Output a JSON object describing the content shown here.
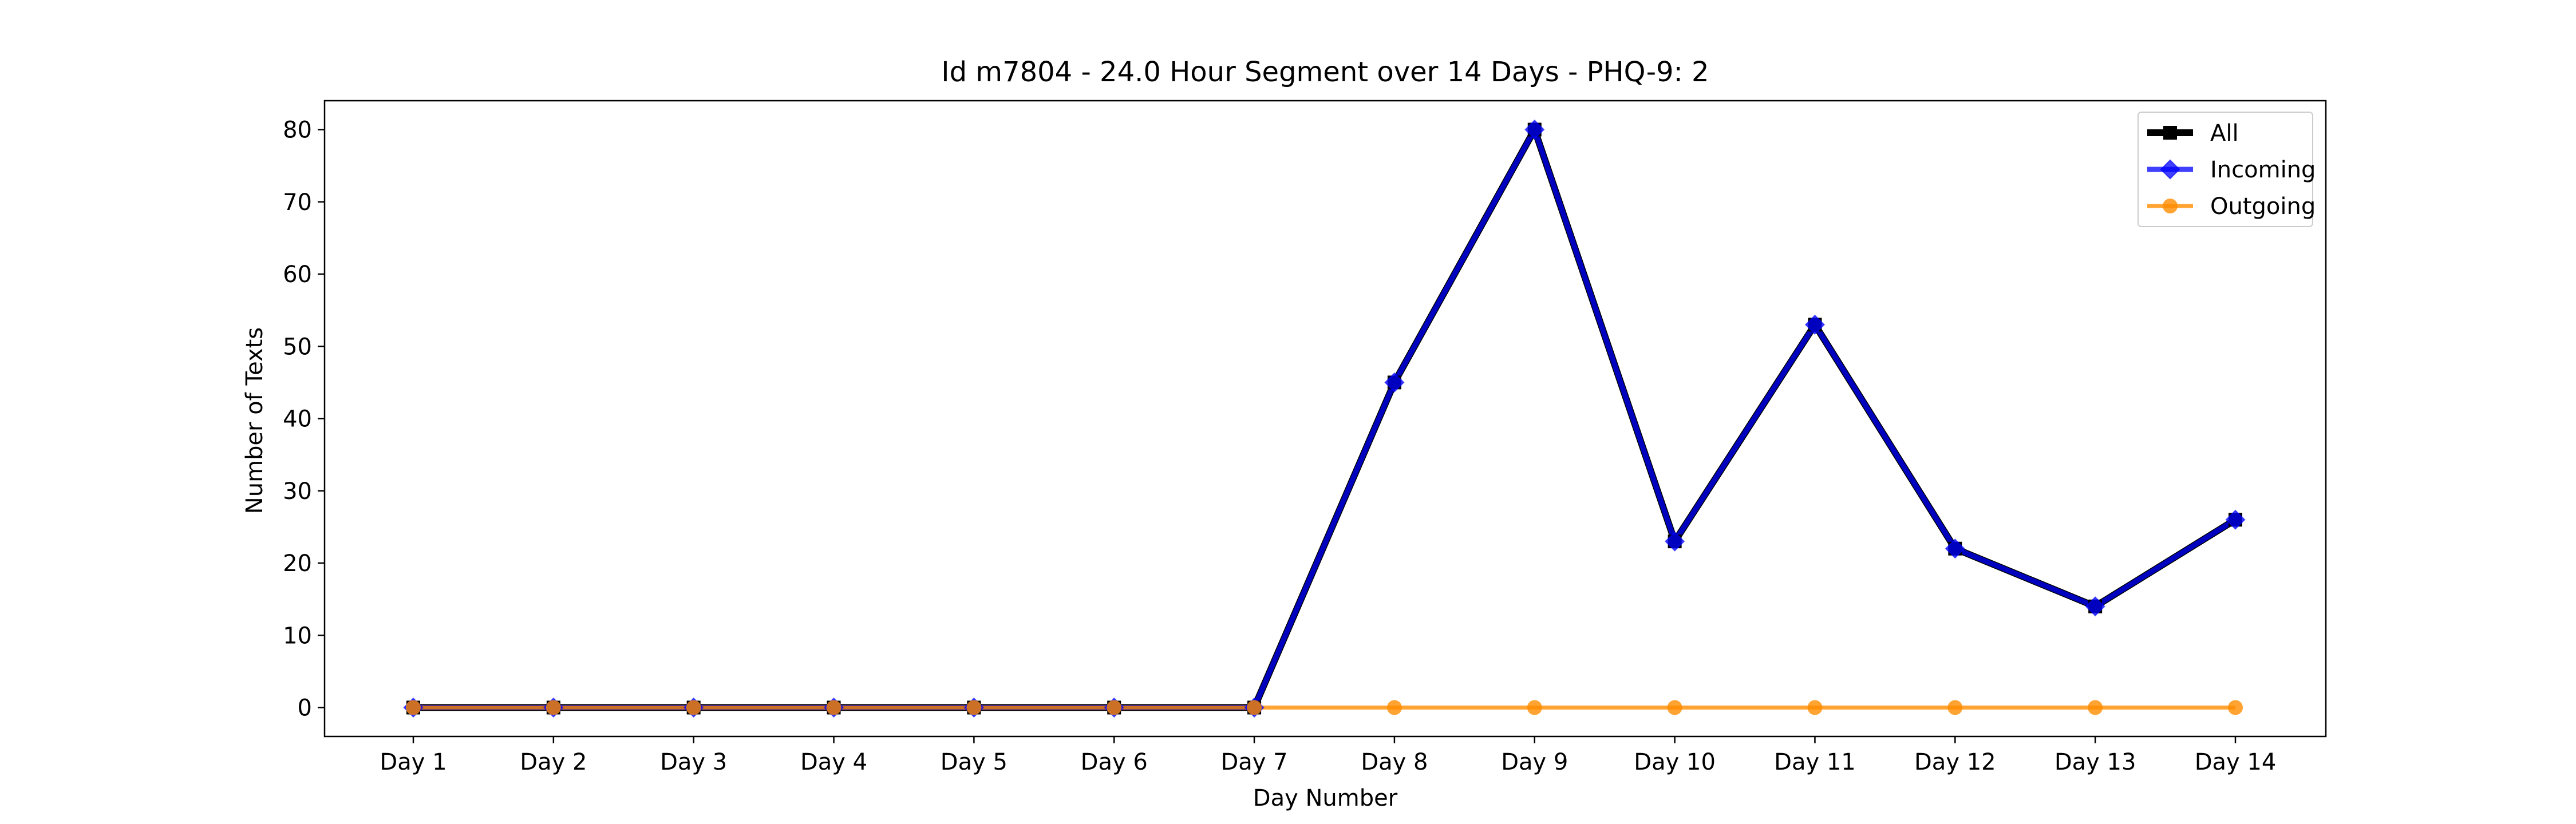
{
  "chart_data": {
    "type": "line",
    "title": "Id m7804 - 24.0 Hour Segment over 14 Days - PHQ-9: 2",
    "xlabel": "Day Number",
    "ylabel": "Number of Texts",
    "categories": [
      "Day 1",
      "Day 2",
      "Day 3",
      "Day 4",
      "Day 5",
      "Day 6",
      "Day 7",
      "Day 8",
      "Day 9",
      "Day 10",
      "Day 11",
      "Day 12",
      "Day 13",
      "Day 14"
    ],
    "ylim": [
      -4,
      84
    ],
    "yticks": [
      0,
      10,
      20,
      30,
      40,
      50,
      60,
      70,
      80
    ],
    "grid": false,
    "legend_position": "top-right",
    "series": [
      {
        "name": "All",
        "color": "#000000",
        "marker": "square",
        "values": [
          0,
          0,
          0,
          0,
          0,
          0,
          0,
          45,
          80,
          23,
          53,
          22,
          14,
          26
        ]
      },
      {
        "name": "Incoming",
        "color": "#0000ff",
        "marker": "diamond",
        "values": [
          0,
          0,
          0,
          0,
          0,
          0,
          0,
          45,
          80,
          23,
          53,
          22,
          14,
          26
        ]
      },
      {
        "name": "Outgoing",
        "color": "#ff8c00",
        "marker": "circle",
        "values": [
          0,
          0,
          0,
          0,
          0,
          0,
          0,
          0,
          0,
          0,
          0,
          0,
          0,
          0
        ]
      }
    ]
  }
}
